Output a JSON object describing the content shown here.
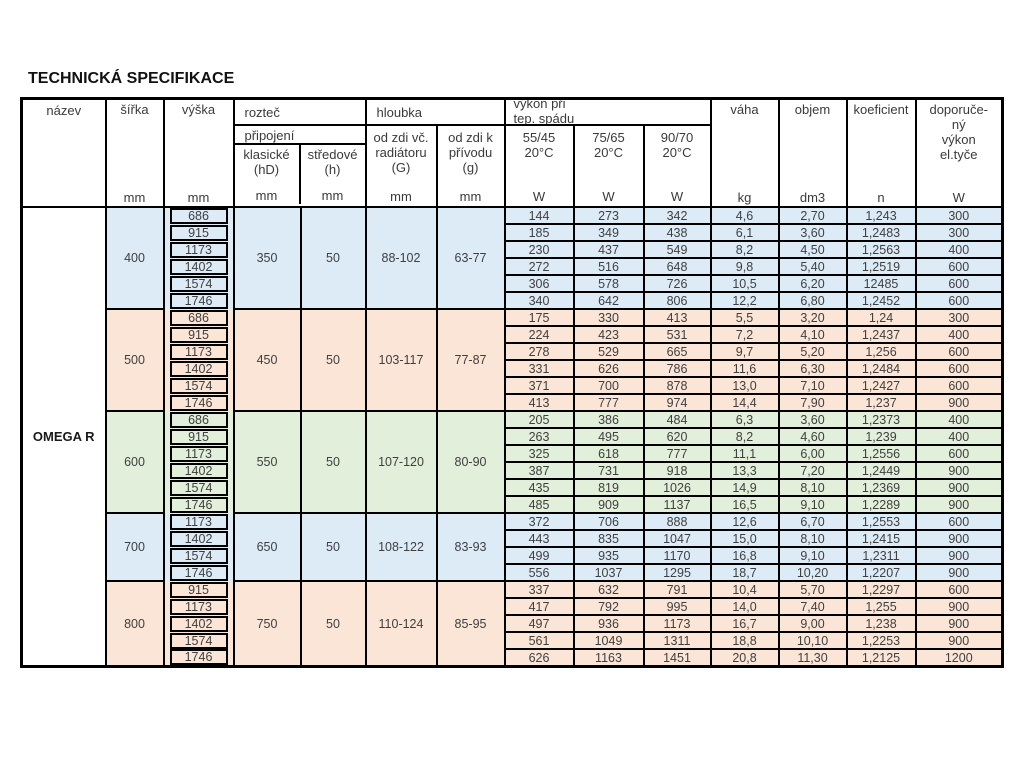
{
  "title": "TECHNICKÁ SPECIFIKACE",
  "product": "OMEGA R",
  "colors": {
    "blue": "#DDEBF7",
    "peach": "#FBE5D6",
    "green": "#E2EFDA"
  },
  "header": {
    "nazev": "název",
    "sirka": "šířka",
    "vyska": "výška",
    "roztec": "rozteč",
    "pripojeni": "připojení",
    "klasicke": "klasické\n(hD)",
    "stredove": "středové\n(h)",
    "hloubka": "hloubka",
    "od_zdi_vc": "od zdi vč.\nradiátoru\n(G)",
    "od_zdi_k": "od zdi k\npřívodu\n(g)",
    "vykon": "výkon při\ntep. spádu",
    "grad1": "55/45\n20°C",
    "grad2": "75/65\n20°C",
    "grad3": "90/70\n20°C",
    "vaha": "váha",
    "objem": "objem",
    "koeficient": "koeficient",
    "doporuceny": "doporuče-\nný\nvýkon\nel.tyče",
    "units": {
      "mm": "mm",
      "w": "W",
      "kg": "kg",
      "dm3": "dm3",
      "n": "n"
    }
  },
  "groups": [
    {
      "sirka": "400",
      "color": "blue",
      "klasicke": "350",
      "stredove": "50",
      "hloubka_g": "88-102",
      "hloubka_g2": "63-77",
      "rows": [
        [
          "686",
          "144",
          "273",
          "342",
          "4,6",
          "2,70",
          "1,243",
          "300"
        ],
        [
          "915",
          "185",
          "349",
          "438",
          "6,1",
          "3,60",
          "1,2483",
          "300"
        ],
        [
          "1173",
          "230",
          "437",
          "549",
          "8,2",
          "4,50",
          "1,2563",
          "400"
        ],
        [
          "1402",
          "272",
          "516",
          "648",
          "9,8",
          "5,40",
          "1,2519",
          "600"
        ],
        [
          "1574",
          "306",
          "578",
          "726",
          "10,5",
          "6,20",
          "12485",
          "600"
        ],
        [
          "1746",
          "340",
          "642",
          "806",
          "12,2",
          "6,80",
          "1,2452",
          "600"
        ]
      ]
    },
    {
      "sirka": "500",
      "color": "peach",
      "klasicke": "450",
      "stredove": "50",
      "hloubka_g": "103-117",
      "hloubka_g2": "77-87",
      "rows": [
        [
          "686",
          "175",
          "330",
          "413",
          "5,5",
          "3,20",
          "1,24",
          "300"
        ],
        [
          "915",
          "224",
          "423",
          "531",
          "7,2",
          "4,10",
          "1,2437",
          "400"
        ],
        [
          "1173",
          "278",
          "529",
          "665",
          "9,7",
          "5,20",
          "1,256",
          "600"
        ],
        [
          "1402",
          "331",
          "626",
          "786",
          "11,6",
          "6,30",
          "1,2484",
          "600"
        ],
        [
          "1574",
          "371",
          "700",
          "878",
          "13,0",
          "7,10",
          "1,2427",
          "600"
        ],
        [
          "1746",
          "413",
          "777",
          "974",
          "14,4",
          "7,90",
          "1,237",
          "900"
        ]
      ]
    },
    {
      "sirka": "600",
      "color": "green",
      "klasicke": "550",
      "stredove": "50",
      "hloubka_g": "107-120",
      "hloubka_g2": "80-90",
      "rows": [
        [
          "686",
          "205",
          "386",
          "484",
          "6,3",
          "3,60",
          "1,2373",
          "400"
        ],
        [
          "915",
          "263",
          "495",
          "620",
          "8,2",
          "4,60",
          "1,239",
          "400"
        ],
        [
          "1173",
          "325",
          "618",
          "777",
          "11,1",
          "6,00",
          "1,2556",
          "600"
        ],
        [
          "1402",
          "387",
          "731",
          "918",
          "13,3",
          "7,20",
          "1,2449",
          "900"
        ],
        [
          "1574",
          "435",
          "819",
          "1026",
          "14,9",
          "8,10",
          "1,2369",
          "900"
        ],
        [
          "1746",
          "485",
          "909",
          "1137",
          "16,5",
          "9,10",
          "1,2289",
          "900"
        ]
      ]
    },
    {
      "sirka": "700",
      "color": "blue",
      "klasicke": "650",
      "stredove": "50",
      "hloubka_g": "108-122",
      "hloubka_g2": "83-93",
      "rows": [
        [
          "1173",
          "372",
          "706",
          "888",
          "12,6",
          "6,70",
          "1,2553",
          "600"
        ],
        [
          "1402",
          "443",
          "835",
          "1047",
          "15,0",
          "8,10",
          "1,2415",
          "900"
        ],
        [
          "1574",
          "499",
          "935",
          "1170",
          "16,8",
          "9,10",
          "1,2311",
          "900"
        ],
        [
          "1746",
          "556",
          "1037",
          "1295",
          "18,7",
          "10,20",
          "1,2207",
          "900"
        ]
      ]
    },
    {
      "sirka": "800",
      "color": "peach",
      "klasicke": "750",
      "stredove": "50",
      "hloubka_g": "110-124",
      "hloubka_g2": "85-95",
      "rows": [
        [
          "915",
          "337",
          "632",
          "791",
          "10,4",
          "5,70",
          "1,2297",
          "600"
        ],
        [
          "1173",
          "417",
          "792",
          "995",
          "14,0",
          "7,40",
          "1,255",
          "900"
        ],
        [
          "1402",
          "497",
          "936",
          "1173",
          "16,7",
          "9,00",
          "1,238",
          "900"
        ],
        [
          "1574",
          "561",
          "1049",
          "1311",
          "18,8",
          "10,10",
          "1,2253",
          "900"
        ],
        [
          "1746",
          "626",
          "1163",
          "1451",
          "20,8",
          "11,30",
          "1,2125",
          "1200"
        ]
      ]
    }
  ]
}
